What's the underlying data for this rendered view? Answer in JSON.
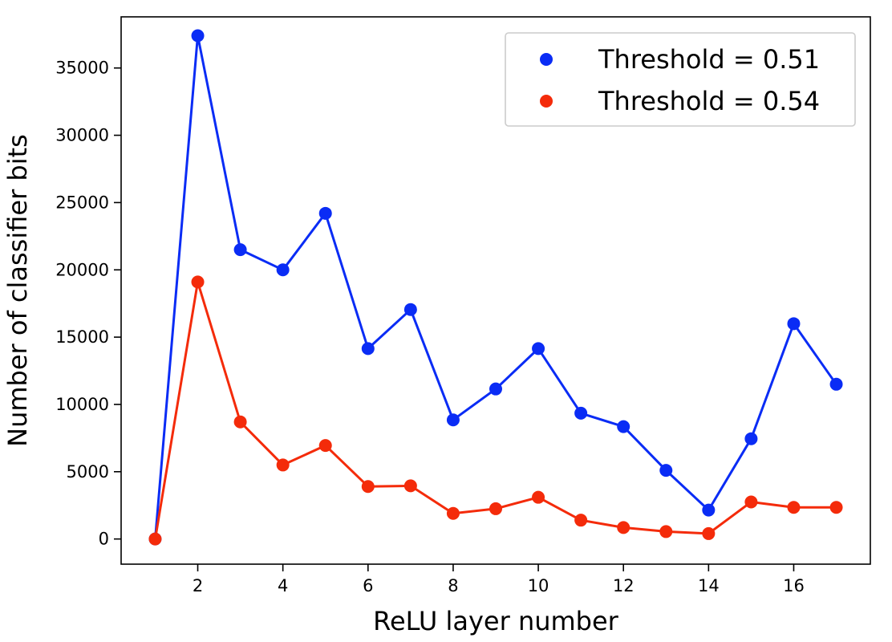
{
  "chart_data": {
    "type": "line",
    "xlabel": "ReLU layer number",
    "ylabel": "Number of classifier bits",
    "xlim": [
      0.2,
      17.8
    ],
    "ylim": [
      -1870,
      38800
    ],
    "x": [
      1,
      2,
      3,
      4,
      5,
      6,
      7,
      8,
      9,
      10,
      11,
      12,
      13,
      14,
      15,
      16,
      17
    ],
    "xticks": [
      2,
      4,
      6,
      8,
      10,
      12,
      14,
      16
    ],
    "xtick_labels": [
      "2",
      "4",
      "6",
      "8",
      "10",
      "12",
      "14",
      "16"
    ],
    "yticks": [
      0,
      5000,
      10000,
      15000,
      20000,
      25000,
      30000,
      35000
    ],
    "ytick_labels": [
      "0",
      "5000",
      "10000",
      "15000",
      "20000",
      "25000",
      "30000",
      "35000"
    ],
    "grid": false,
    "legend_position": "upper right",
    "series": [
      {
        "name": "Threshold = 0.51",
        "color": "#0a2cf5",
        "values": [
          0,
          37400,
          21500,
          20000,
          24200,
          14150,
          17050,
          8850,
          11150,
          14150,
          9350,
          8350,
          5100,
          2150,
          7450,
          16000,
          11500
        ]
      },
      {
        "name": "Threshold = 0.54",
        "color": "#f42b0a",
        "values": [
          0,
          19100,
          8700,
          5500,
          6950,
          3900,
          3950,
          1900,
          2250,
          3100,
          1400,
          850,
          550,
          400,
          2750,
          2350,
          2350
        ]
      }
    ]
  }
}
